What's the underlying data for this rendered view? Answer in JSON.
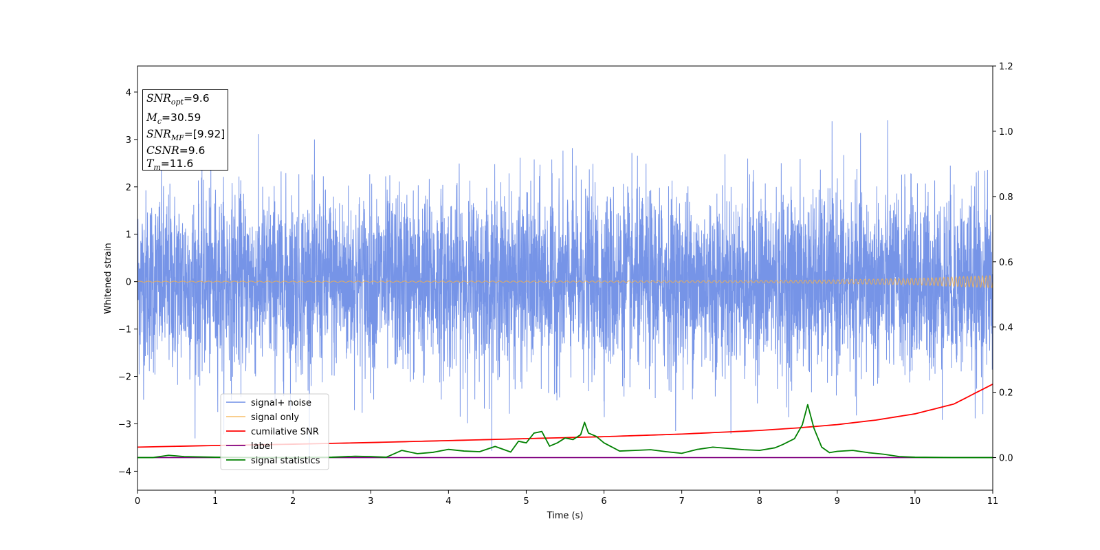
{
  "colors": {
    "signal_noise": "#6f8ee6",
    "signal_only": "#f5b04a",
    "cumulative_snr": "#ff0000",
    "label": "#800080",
    "signal_statistics": "#008000"
  },
  "info_box": {
    "snr_opt_sym": "SNR",
    "snr_opt_sub": "opt",
    "snr_opt_val": "=9.6",
    "mc_sym": "M",
    "mc_sub": "c",
    "mc_val": "=30.59",
    "snr_mf_sym": "SNR",
    "snr_mf_sub": "MF",
    "snr_mf_val": "=[9.92]",
    "csnr_sym": "CSNR",
    "csnr_val": "=9.6",
    "tm_sym": "T",
    "tm_sub": "m",
    "tm_val": "=11.6"
  },
  "chart_data": {
    "type": "line",
    "xlabel": "Time (s)",
    "ylabel": "Whitened strain",
    "xlim": [
      0,
      11
    ],
    "ylim_left": [
      -4.4,
      4.55
    ],
    "ylim_right": [
      -0.1,
      1.2
    ],
    "xticks": [
      0,
      1,
      2,
      3,
      4,
      5,
      6,
      7,
      8,
      9,
      10,
      11
    ],
    "yticks_left": [
      -4,
      -3,
      -2,
      -1,
      0,
      1,
      2,
      3,
      4
    ],
    "yticks_right": [
      0.0,
      0.2,
      0.4,
      0.6,
      0.8,
      1.0,
      1.2
    ],
    "legend_position": "lower-left",
    "series": [
      {
        "name": "signal+ noise",
        "axis": "left",
        "description_values": "whitened noise, approx. standard deviation 1, peaks to about 4"
      },
      {
        "name": "signal only",
        "axis": "left",
        "amplitude_envelope": {
          "t": [
            0,
            6,
            8,
            9,
            10,
            10.5,
            11
          ],
          "amp": [
            0.01,
            0.015,
            0.025,
            0.04,
            0.07,
            0.1,
            0.13
          ]
        }
      },
      {
        "name": "cumilative SNR",
        "axis": "right",
        "x": [
          0,
          1,
          2,
          3,
          4,
          5,
          6,
          7,
          8,
          8.5,
          9,
          9.5,
          10,
          10.5,
          11
        ],
        "y": [
          0.032,
          0.037,
          0.041,
          0.046,
          0.052,
          0.058,
          0.064,
          0.072,
          0.083,
          0.091,
          0.101,
          0.115,
          0.134,
          0.164,
          0.225
        ]
      },
      {
        "name": "label",
        "axis": "right",
        "x": [
          0,
          11
        ],
        "y": [
          0.0,
          0.0
        ]
      },
      {
        "name": "signal statistics",
        "axis": "right",
        "x": [
          0,
          0.2,
          0.4,
          0.6,
          1.0,
          1.5,
          2.0,
          2.5,
          2.8,
          3.0,
          3.2,
          3.4,
          3.6,
          3.8,
          4.0,
          4.2,
          4.4,
          4.6,
          4.8,
          4.9,
          5.0,
          5.1,
          5.2,
          5.3,
          5.4,
          5.5,
          5.6,
          5.7,
          5.75,
          5.8,
          5.9,
          6.0,
          6.2,
          6.4,
          6.6,
          6.8,
          7.0,
          7.2,
          7.4,
          7.6,
          7.8,
          8.0,
          8.2,
          8.3,
          8.45,
          8.55,
          8.62,
          8.7,
          8.8,
          8.9,
          9.0,
          9.2,
          9.4,
          9.6,
          9.8,
          10.0,
          10.5,
          11
        ],
        "y": [
          0.0,
          0.0,
          0.007,
          0.003,
          0.001,
          0.0,
          0.0,
          0.001,
          0.004,
          0.003,
          0.001,
          0.022,
          0.012,
          0.016,
          0.025,
          0.02,
          0.018,
          0.034,
          0.017,
          0.05,
          0.045,
          0.075,
          0.08,
          0.035,
          0.045,
          0.06,
          0.055,
          0.07,
          0.108,
          0.075,
          0.065,
          0.045,
          0.02,
          0.022,
          0.024,
          0.018,
          0.013,
          0.025,
          0.032,
          0.028,
          0.024,
          0.022,
          0.03,
          0.04,
          0.058,
          0.1,
          0.162,
          0.09,
          0.032,
          0.015,
          0.019,
          0.022,
          0.015,
          0.01,
          0.003,
          0.001,
          0.0,
          0.0
        ]
      }
    ]
  }
}
